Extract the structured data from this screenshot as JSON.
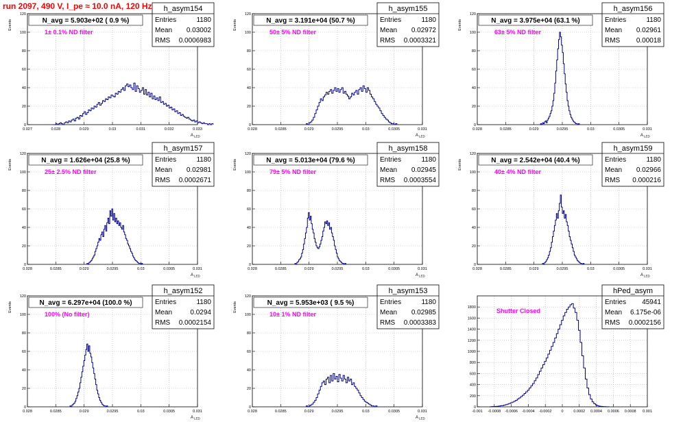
{
  "page": {
    "title": "run 2097,   490 V, I_pe ≈ 10.0 nA, 120 Hz"
  },
  "colors": {
    "histogram": "#00008b",
    "annotation": "#ff00ff",
    "title": "#ff0000",
    "grid": "#b0b0b0"
  },
  "chart_data": [
    {
      "type": "histogram",
      "name": "h_asym154",
      "title": "N_avg = 5.903e+02 ( 0.9 %)",
      "annotation": "1± 0.1% ND filter",
      "stats": {
        "Entries": "1180",
        "Mean": "0.03002",
        "RMS": "0.0006983"
      },
      "xlabel": "A",
      "xlabel_sub": "LED",
      "ylabel": "Events",
      "xlim": [
        0.027,
        0.033
      ],
      "ylim": [
        0,
        120
      ],
      "xticks": [
        0.027,
        0.028,
        0.029,
        0.03,
        0.031,
        0.032,
        0.033
      ],
      "xtick_labels": [
        "0.027",
        "0.028",
        "0.029",
        "0.03",
        "0.031",
        "0.032",
        "0.033"
      ],
      "yticks": [
        0,
        20,
        40,
        60,
        80,
        100,
        120
      ],
      "bins": {
        "start": 0.0279,
        "width": 5e-05,
        "counts": [
          0,
          0,
          1,
          0,
          1,
          2,
          1,
          0,
          2,
          3,
          2,
          4,
          3,
          5,
          6,
          4,
          7,
          8,
          6,
          10,
          9,
          12,
          14,
          11,
          13,
          16,
          15,
          18,
          17,
          20,
          19,
          22,
          24,
          21,
          23,
          26,
          25,
          28,
          27,
          30,
          29,
          32,
          31,
          30,
          34,
          33,
          36,
          35,
          38,
          40,
          37,
          42,
          44,
          41,
          43,
          40,
          38,
          45,
          36,
          42,
          39,
          35,
          37,
          40,
          33,
          38,
          32,
          35,
          30,
          34,
          28,
          31,
          27,
          29,
          26,
          30,
          24,
          25,
          22,
          23,
          20,
          21,
          18,
          19,
          16,
          17,
          14,
          15,
          12,
          13,
          10,
          11,
          9,
          8,
          7,
          8,
          6,
          5,
          4,
          5,
          3,
          4,
          2,
          3,
          2,
          1,
          2,
          1,
          1,
          0,
          1,
          0,
          1
        ]
      }
    },
    {
      "type": "histogram",
      "name": "h_asym155",
      "title": "N_avg = 3.191e+04 (50.7 %)",
      "annotation": "50± 5% ND filter",
      "stats": {
        "Entries": "1180",
        "Mean": "0.02972",
        "RMS": "0.0003321"
      },
      "xlabel": "A",
      "xlabel_sub": "LED",
      "ylabel": "Events",
      "xlim": [
        0.028,
        0.031
      ],
      "ylim": [
        0,
        120
      ],
      "xticks": [
        0.028,
        0.0285,
        0.029,
        0.0295,
        0.03,
        0.0305,
        0.031
      ],
      "xtick_labels": [
        "0.028",
        "0.0285",
        "0.029",
        "0.0295",
        "0.03",
        "0.0305",
        "0.031"
      ],
      "yticks": [
        0,
        20,
        40,
        60,
        80,
        100,
        120
      ],
      "bins": {
        "start": 0.02895,
        "width": 2.5e-05,
        "counts": [
          1,
          0,
          2,
          3,
          5,
          8,
          12,
          16,
          20,
          24,
          28,
          26,
          30,
          32,
          35,
          33,
          36,
          38,
          34,
          37,
          40,
          36,
          39,
          35,
          38,
          40,
          34,
          36,
          33,
          31,
          28,
          30,
          34,
          32,
          35,
          37,
          33,
          38,
          40,
          36,
          42,
          39,
          35,
          40,
          37,
          33,
          30,
          28,
          25,
          22,
          20,
          18,
          15,
          12,
          10,
          8,
          6,
          5,
          3,
          2,
          1,
          1,
          0,
          1
        ]
      }
    },
    {
      "type": "histogram",
      "name": "h_asym156",
      "title": "N_avg = 3.975e+04 (63.1 %)",
      "annotation": "63± 5% ND filter",
      "stats": {
        "Entries": "1180",
        "Mean": "0.02961",
        "RMS": "0.00018"
      },
      "xlabel": "A",
      "xlabel_sub": "LED",
      "ylabel": "Events",
      "xlim": [
        0.028,
        0.031
      ],
      "ylim": [
        0,
        120
      ],
      "xticks": [
        0.028,
        0.0285,
        0.029,
        0.0295,
        0.03,
        0.0305,
        0.031
      ],
      "xtick_labels": [
        "0.028",
        "0.0285",
        "0.029",
        "0.0295",
        "0.03",
        "0.0305",
        "0.031"
      ],
      "yticks": [
        0,
        20,
        40,
        60,
        80,
        100,
        120
      ],
      "bins": {
        "start": 0.0291,
        "width": 1.67e-05,
        "counts": [
          0,
          1,
          0,
          2,
          1,
          3,
          4,
          2,
          5,
          7,
          9,
          12,
          15,
          20,
          26,
          34,
          45,
          58,
          70,
          82,
          92,
          100,
          95,
          86,
          78,
          66,
          55,
          44,
          35,
          26,
          20,
          15,
          11,
          8,
          6,
          4,
          3,
          2,
          1,
          1,
          0,
          1
        ]
      }
    },
    {
      "type": "histogram",
      "name": "h_asym157",
      "title": "N_avg = 1.626e+04 (25.8 %)",
      "annotation": "25± 2.5% ND filter",
      "stats": {
        "Entries": "1180",
        "Mean": "0.02981",
        "RMS": "0.0002671"
      },
      "xlabel": "A",
      "xlabel_sub": "LED",
      "ylabel": "Events",
      "xlim": [
        0.028,
        0.031
      ],
      "ylim": [
        0,
        120
      ],
      "xticks": [
        0.028,
        0.0285,
        0.029,
        0.0295,
        0.03,
        0.0305,
        0.031
      ],
      "xtick_labels": [
        "0.028",
        "0.0285",
        "0.029",
        "0.0295",
        "0.03",
        "0.0305",
        "0.031"
      ],
      "yticks": [
        0,
        20,
        40,
        60,
        80,
        100,
        120
      ],
      "bins": {
        "start": 0.02905,
        "width": 1.75e-05,
        "counts": [
          1,
          0,
          2,
          3,
          4,
          6,
          8,
          10,
          14,
          17,
          20,
          24,
          28,
          26,
          32,
          35,
          30,
          38,
          42,
          36,
          45,
          50,
          44,
          58,
          52,
          60,
          48,
          55,
          46,
          50,
          44,
          47,
          42,
          45,
          40,
          38,
          42,
          35,
          32,
          28,
          26,
          22,
          20,
          17,
          14,
          12,
          9,
          7,
          5,
          4,
          3,
          2,
          1,
          1,
          0,
          1
        ]
      }
    },
    {
      "type": "histogram",
      "name": "h_asym158",
      "title": "N_avg = 5.013e+04 (79.6 %)",
      "annotation": "79± 5% ND filter",
      "stats": {
        "Entries": "1180",
        "Mean": "0.02945",
        "RMS": "0.0003554"
      },
      "xlabel": "A",
      "xlabel_sub": "LED",
      "ylabel": "Events",
      "xlim": [
        0.028,
        0.031
      ],
      "ylim": [
        0,
        120
      ],
      "xticks": [
        0.028,
        0.0285,
        0.029,
        0.0295,
        0.03,
        0.0305,
        0.031
      ],
      "xtick_labels": [
        "0.028",
        "0.0285",
        "0.029",
        "0.0295",
        "0.03",
        "0.0305",
        "0.031"
      ],
      "yticks": [
        0,
        20,
        40,
        60,
        80,
        100,
        120
      ],
      "bins": {
        "start": 0.02875,
        "width": 1.7e-05,
        "counts": [
          1,
          0,
          2,
          3,
          5,
          6,
          8,
          12,
          16,
          22,
          28,
          34,
          40,
          50,
          56,
          48,
          52,
          44,
          38,
          34,
          28,
          24,
          20,
          18,
          17,
          19,
          22,
          26,
          30,
          36,
          40,
          46,
          44,
          47,
          42,
          45,
          38,
          40,
          34,
          30,
          26,
          20,
          16,
          12,
          8,
          6,
          4,
          3,
          2,
          1,
          1,
          0,
          1
        ]
      }
    },
    {
      "type": "histogram",
      "name": "h_asym159",
      "title": "N_avg = 2.542e+04 (40.4 %)",
      "annotation": "40± 4% ND filter",
      "stats": {
        "Entries": "1180",
        "Mean": "0.02966",
        "RMS": "0.000216"
      },
      "xlabel": "A",
      "xlabel_sub": "LED",
      "ylabel": "Events",
      "xlim": [
        0.028,
        0.031
      ],
      "ylim": [
        0,
        120
      ],
      "xticks": [
        0.028,
        0.0285,
        0.029,
        0.0295,
        0.03,
        0.0305,
        0.031
      ],
      "xtick_labels": [
        "0.028",
        "0.0285",
        "0.029",
        "0.0295",
        "0.03",
        "0.0305",
        "0.031"
      ],
      "yticks": [
        0,
        20,
        40,
        60,
        80,
        100,
        120
      ],
      "bins": {
        "start": 0.02915,
        "width": 1.75e-05,
        "counts": [
          1,
          0,
          2,
          3,
          5,
          7,
          10,
          14,
          18,
          24,
          30,
          36,
          42,
          48,
          55,
          50,
          58,
          66,
          75,
          62,
          55,
          58,
          50,
          54,
          46,
          42,
          36,
          30,
          26,
          22,
          18,
          14,
          10,
          8,
          6,
          4,
          3,
          2,
          1,
          1,
          0,
          1
        ]
      }
    },
    {
      "type": "histogram",
      "name": "h_asym152",
      "title": "N_avg = 6.297e+04 (100.0 %)",
      "annotation": "100% (No filter)",
      "stats": {
        "Entries": "1180",
        "Mean": "0.0294",
        "RMS": "0.0002154"
      },
      "xlabel": "A",
      "xlabel_sub": "LED",
      "ylabel": "Events",
      "xlim": [
        0.028,
        0.031
      ],
      "ylim": [
        0,
        120
      ],
      "xticks": [
        0.028,
        0.0285,
        0.029,
        0.0295,
        0.03,
        0.0305,
        0.031
      ],
      "xtick_labels": [
        "0.028",
        "0.0285",
        "0.029",
        "0.0295",
        "0.03",
        "0.0305",
        "0.031"
      ],
      "yticks": [
        0,
        20,
        40,
        60,
        80,
        100,
        120
      ],
      "bins": {
        "start": 0.02875,
        "width": 1.75e-05,
        "counts": [
          1,
          0,
          2,
          3,
          4,
          6,
          9,
          12,
          16,
          20,
          26,
          32,
          38,
          44,
          50,
          56,
          62,
          68,
          60,
          66,
          58,
          54,
          48,
          42,
          36,
          30,
          24,
          18,
          14,
          10,
          7,
          5,
          3,
          2,
          1,
          1,
          0,
          1
        ]
      }
    },
    {
      "type": "histogram",
      "name": "h_asym153",
      "title": "N_avg = 5.953e+03 ( 9.5 %)",
      "annotation": "10± 1% ND filter",
      "stats": {
        "Entries": "1180",
        "Mean": "0.02985",
        "RMS": "0.0003383"
      },
      "xlabel": "A",
      "xlabel_sub": "LED",
      "ylabel": "Events",
      "xlim": [
        0.028,
        0.031
      ],
      "ylim": [
        0,
        120
      ],
      "xticks": [
        0.028,
        0.0285,
        0.029,
        0.0295,
        0.03,
        0.0305,
        0.031
      ],
      "xtick_labels": [
        "0.028",
        "0.0285",
        "0.029",
        "0.0295",
        "0.03",
        "0.0305",
        "0.031"
      ],
      "yticks": [
        0,
        20,
        40,
        60,
        80,
        100,
        120
      ],
      "bins": {
        "start": 0.02895,
        "width": 2.5e-05,
        "counts": [
          1,
          0,
          1,
          2,
          3,
          5,
          7,
          10,
          14,
          18,
          22,
          26,
          28,
          24,
          30,
          32,
          26,
          34,
          28,
          36,
          30,
          33,
          27,
          35,
          31,
          28,
          34,
          30,
          26,
          32,
          28,
          30,
          24,
          26,
          22,
          20,
          18,
          15,
          12,
          10,
          8,
          6,
          5,
          4,
          3,
          2,
          1,
          1,
          0,
          1
        ]
      }
    },
    {
      "type": "histogram",
      "name": "hPed_asym",
      "title": "",
      "annotation": "Shutter Closed",
      "stats": {
        "Entries": "45941",
        "Mean": "6.175e-06",
        "RMS": "0.0002156"
      },
      "xlabel": "",
      "xlabel_sub": "",
      "ylabel": "",
      "xlim": [
        -0.001,
        0.001
      ],
      "ylim": [
        0,
        2000
      ],
      "xticks": [
        -0.001,
        -0.0008,
        -0.0006,
        -0.0004,
        -0.0002,
        0,
        0.0002,
        0.0004,
        0.0006,
        0.0008,
        0.001
      ],
      "xtick_labels": [
        "-0.001",
        "-0.0008",
        "-0.0006",
        "-0.0004",
        "-0.0002",
        "0",
        "0.0002",
        "0.0004",
        "0.0006",
        "0.0008",
        "0.001"
      ],
      "yticks": [
        0,
        200,
        400,
        600,
        800,
        1000,
        1200,
        1400,
        1600,
        1800
      ],
      "bins": {
        "start": -0.00085,
        "width": 2e-05,
        "counts": [
          2,
          4,
          5,
          8,
          10,
          14,
          18,
          22,
          30,
          38,
          48,
          60,
          72,
          85,
          100,
          118,
          140,
          160,
          185,
          210,
          240,
          270,
          300,
          340,
          380,
          420,
          470,
          520,
          580,
          640,
          700,
          760,
          820,
          880,
          950,
          1020,
          1090,
          1160,
          1240,
          1320,
          1400,
          1480,
          1560,
          1640,
          1700,
          1760,
          1800,
          1840,
          1860,
          1780,
          1700,
          1560,
          1380,
          1160,
          920,
          700,
          500,
          340,
          220,
          140,
          90,
          56,
          34,
          20,
          12,
          8,
          5,
          3,
          2,
          1
        ]
      }
    }
  ]
}
